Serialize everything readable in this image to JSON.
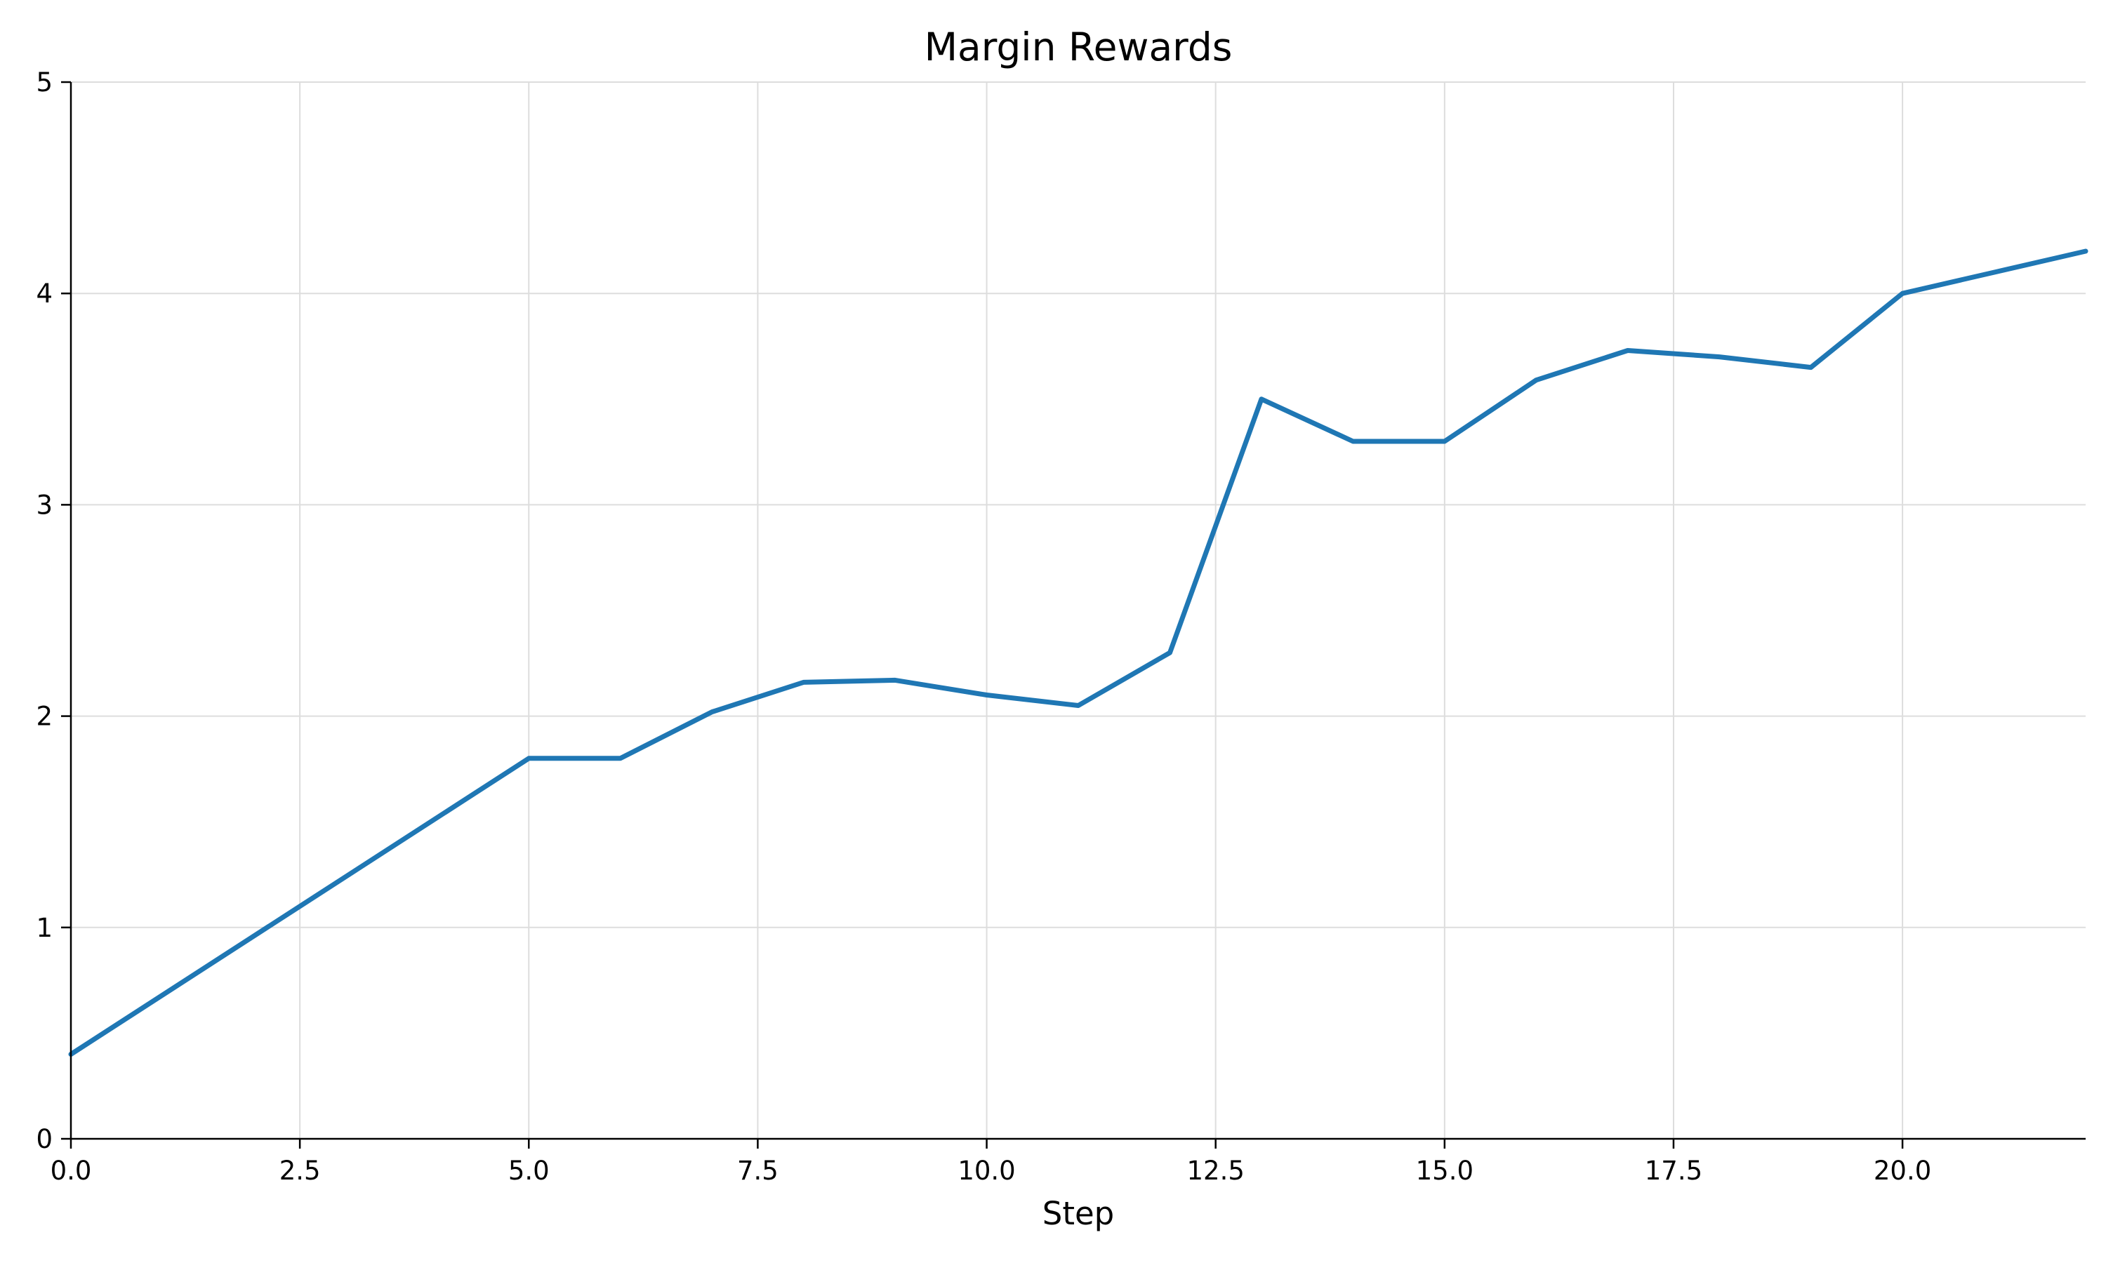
{
  "chart_data": {
    "type": "line",
    "title": "Margin Rewards",
    "xlabel": "Step",
    "ylabel": "",
    "xlim": [
      0,
      22
    ],
    "ylim": [
      0,
      5
    ],
    "x_ticks": [
      "0.0",
      "2.5",
      "5.0",
      "7.5",
      "10.0",
      "12.5",
      "15.0",
      "17.5",
      "20.0"
    ],
    "y_ticks": [
      "0",
      "1",
      "2",
      "3",
      "4",
      "5"
    ],
    "grid": true,
    "legend": "none",
    "series": [
      {
        "color": "#1f77b4",
        "x": [
          0,
          5,
          6,
          7,
          8,
          9,
          10,
          11,
          12,
          13,
          14,
          15,
          16,
          17,
          18,
          19,
          20,
          21,
          22
        ],
        "y": [
          0.4,
          1.8,
          1.8,
          2.02,
          2.16,
          2.17,
          2.1,
          2.05,
          2.3,
          3.5,
          3.3,
          3.3,
          3.59,
          3.73,
          3.7,
          3.65,
          4.0,
          4.1,
          4.2
        ]
      }
    ]
  }
}
